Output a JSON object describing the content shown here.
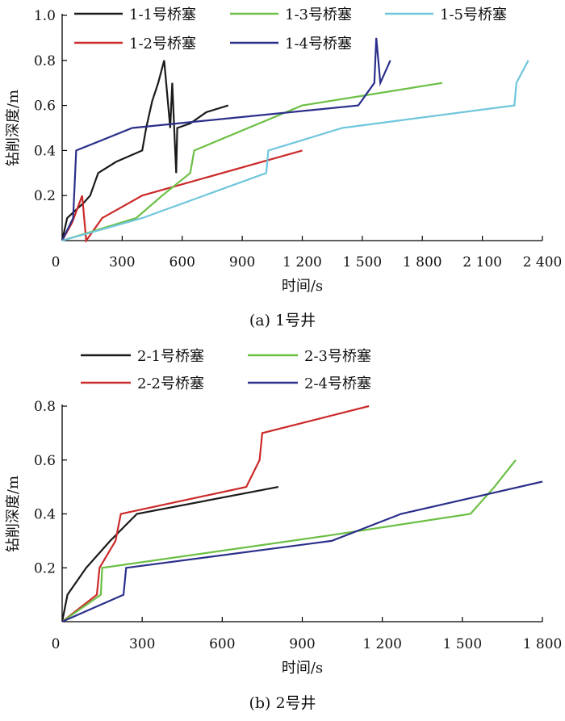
{
  "chart_data": [
    {
      "type": "line",
      "caption": "(a) 1号井",
      "xlabel": "时间/s",
      "ylabel": "钻削深度/m",
      "xlim": [
        0,
        2400
      ],
      "ylim": [
        0,
        1.0
      ],
      "xticks": [
        0,
        300,
        600,
        900,
        1200,
        1500,
        1800,
        2100,
        2400
      ],
      "xtick_labels": [
        "0",
        "300",
        "600",
        "900",
        "1 200",
        "1 500",
        "1 800",
        "2 100",
        "2 400"
      ],
      "yticks": [
        0.2,
        0.4,
        0.6,
        0.8,
        1.0
      ],
      "ytick_labels": [
        "0.2",
        "0.4",
        "0.6",
        "0.8",
        "1.0"
      ],
      "legend_position": "top",
      "series": [
        {
          "name": "1-1号桥塞",
          "color": "#1a1a1a",
          "points": [
            [
              0,
              0
            ],
            [
              25,
              0.1
            ],
            [
              110,
              0.17
            ],
            [
              140,
              0.2
            ],
            [
              180,
              0.3
            ],
            [
              270,
              0.35
            ],
            [
              400,
              0.4
            ],
            [
              420,
              0.5
            ],
            [
              450,
              0.62
            ],
            [
              480,
              0.7
            ],
            [
              510,
              0.8
            ],
            [
              540,
              0.5
            ],
            [
              550,
              0.7
            ],
            [
              560,
              0.5
            ],
            [
              570,
              0.3
            ],
            [
              575,
              0.5
            ],
            [
              640,
              0.52
            ],
            [
              720,
              0.57
            ],
            [
              830,
              0.6
            ]
          ]
        },
        {
          "name": "1-2号桥塞",
          "color": "#cc2a2a",
          "points": [
            [
              0,
              0
            ],
            [
              50,
              0.08
            ],
            [
              100,
              0.2
            ],
            [
              120,
              0
            ],
            [
              200,
              0.1
            ],
            [
              400,
              0.2
            ],
            [
              1200,
              0.4
            ]
          ]
        },
        {
          "name": "1-3号桥塞",
          "color": "#6cbf45",
          "points": [
            [
              0,
              0
            ],
            [
              370,
              0.1
            ],
            [
              500,
              0.2
            ],
            [
              640,
              0.3
            ],
            [
              660,
              0.4
            ],
            [
              1200,
              0.6
            ],
            [
              1900,
              0.7
            ]
          ]
        },
        {
          "name": "1-4号桥塞",
          "color": "#2b2f8a",
          "points": [
            [
              0,
              0
            ],
            [
              55,
              0.1
            ],
            [
              70,
              0.4
            ],
            [
              350,
              0.5
            ],
            [
              1480,
              0.6
            ],
            [
              1560,
              0.7
            ],
            [
              1570,
              0.9
            ],
            [
              1590,
              0.7
            ],
            [
              1640,
              0.8
            ]
          ]
        },
        {
          "name": "1-5号桥塞",
          "color": "#70c6dc",
          "points": [
            [
              0,
              0
            ],
            [
              400,
              0.1
            ],
            [
              1020,
              0.3
            ],
            [
              1030,
              0.4
            ],
            [
              1400,
              0.5
            ],
            [
              2260,
              0.6
            ],
            [
              2270,
              0.7
            ],
            [
              2330,
              0.8
            ]
          ]
        }
      ]
    },
    {
      "type": "line",
      "caption": "(b) 2号井",
      "xlabel": "时间/s",
      "ylabel": "钻削深度/m",
      "xlim": [
        0,
        1800
      ],
      "ylim": [
        0,
        0.8
      ],
      "xticks": [
        0,
        300,
        600,
        900,
        1200,
        1500,
        1800
      ],
      "xtick_labels": [
        "0",
        "300",
        "600",
        "900",
        "1 200",
        "1 500",
        "1 800"
      ],
      "yticks": [
        0.2,
        0.4,
        0.6,
        0.8
      ],
      "ytick_labels": [
        "0.2",
        "0.4",
        "0.6",
        "0.8"
      ],
      "legend_position": "top",
      "series": [
        {
          "name": "2-1号桥塞",
          "color": "#1a1a1a",
          "points": [
            [
              0,
              0
            ],
            [
              20,
              0.1
            ],
            [
              90,
              0.2
            ],
            [
              180,
              0.3
            ],
            [
              280,
              0.4
            ],
            [
              810,
              0.5
            ]
          ]
        },
        {
          "name": "2-2号桥塞",
          "color": "#cc2a2a",
          "points": [
            [
              0,
              0
            ],
            [
              130,
              0.1
            ],
            [
              140,
              0.2
            ],
            [
              200,
              0.3
            ],
            [
              220,
              0.4
            ],
            [
              690,
              0.5
            ],
            [
              740,
              0.6
            ],
            [
              750,
              0.7
            ],
            [
              1150,
              0.8
            ]
          ]
        },
        {
          "name": "2-3号桥塞",
          "color": "#6cbf45",
          "points": [
            [
              0,
              0
            ],
            [
              145,
              0.1
            ],
            [
              150,
              0.2
            ],
            [
              1000,
              0.32
            ],
            [
              1530,
              0.4
            ],
            [
              1620,
              0.5
            ],
            [
              1700,
              0.6
            ]
          ]
        },
        {
          "name": "2-4号桥塞",
          "color": "#2b2f8a",
          "points": [
            [
              0,
              0
            ],
            [
              230,
              0.1
            ],
            [
              240,
              0.2
            ],
            [
              1010,
              0.3
            ],
            [
              1270,
              0.4
            ],
            [
              1800,
              0.52
            ]
          ]
        }
      ]
    }
  ]
}
